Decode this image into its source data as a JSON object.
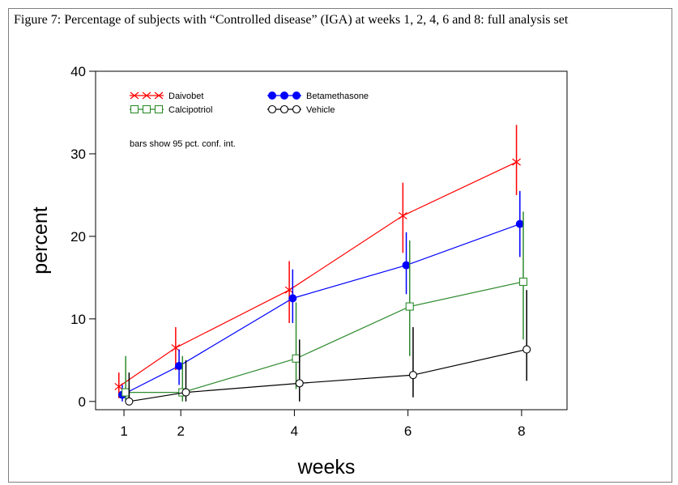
{
  "figure": {
    "caption": "Figure 7: Percentage of subjects with “Controlled disease” (IGA) at weeks 1, 2, 4, 6 and 8: full analysis set"
  },
  "chart_data": {
    "type": "line",
    "title": "",
    "xlabel": "weeks",
    "ylabel": "percent",
    "xlim": [
      0.5,
      8.8
    ],
    "ylim": [
      -1,
      40
    ],
    "xticks": [
      1,
      2,
      4,
      6,
      8
    ],
    "yticks": [
      0,
      10,
      20,
      30,
      40
    ],
    "grid": false,
    "legend_position": "top-left",
    "annotation": "bars show 95 pct. conf. int.",
    "series": [
      {
        "name": "Daivobet",
        "color": "#ff0000",
        "marker": "x",
        "x": [
          1,
          2,
          4,
          6,
          8
        ],
        "y": [
          1.8,
          6.5,
          13.5,
          22.5,
          29
        ],
        "ci_low": [
          0.4,
          3.8,
          9.5,
          18,
          25
        ],
        "ci_high": [
          3.5,
          9,
          17,
          26.5,
          33.5
        ]
      },
      {
        "name": "Betamethasone",
        "color": "#0000ff",
        "marker": "filled-circle",
        "x": [
          1,
          2,
          4,
          6,
          8
        ],
        "y": [
          0.8,
          4.3,
          12.5,
          16.5,
          21.5
        ],
        "ci_low": [
          0,
          2,
          9.5,
          13,
          17.5
        ],
        "ci_high": [
          2,
          6.3,
          16,
          20.5,
          25.5
        ]
      },
      {
        "name": "Calcipotriol",
        "color": "#2e8b2e",
        "marker": "square",
        "x": [
          1,
          2,
          4,
          6,
          8
        ],
        "y": [
          1.1,
          1.1,
          5.2,
          11.5,
          14.5
        ],
        "ci_low": [
          0,
          0,
          1.5,
          5.5,
          7.5
        ],
        "ci_high": [
          5.5,
          5.5,
          12,
          19.5,
          23
        ]
      },
      {
        "name": "Vehicle",
        "color": "#000000",
        "marker": "open-circle",
        "x": [
          1,
          2,
          4,
          6,
          8
        ],
        "y": [
          0,
          1.1,
          2.2,
          3.2,
          6.3
        ],
        "ci_low": [
          0,
          0,
          0,
          0.5,
          2.5
        ],
        "ci_high": [
          3.5,
          5,
          7.5,
          9,
          13.5
        ]
      }
    ]
  }
}
